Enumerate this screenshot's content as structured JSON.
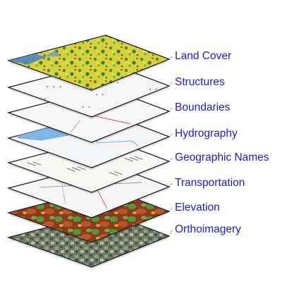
{
  "layers": [
    {
      "label": "Land Cover",
      "style": "landcover"
    },
    {
      "label": "Structures",
      "style": "structures"
    },
    {
      "label": "Boundaries",
      "style": "boundaries"
    },
    {
      "label": "Hydrography",
      "style": "hydrography"
    },
    {
      "label": "Geographic Names",
      "style": "names"
    },
    {
      "label": "Transportation",
      "style": "transportation"
    },
    {
      "label": "Elevation",
      "style": "elevation"
    },
    {
      "label": "Orthoimagery",
      "style": "orthoimagery"
    }
  ],
  "colors": {
    "label_text": "#1a1ae6",
    "connector": "#9a9a9a",
    "sheet_edge": "#222222"
  }
}
